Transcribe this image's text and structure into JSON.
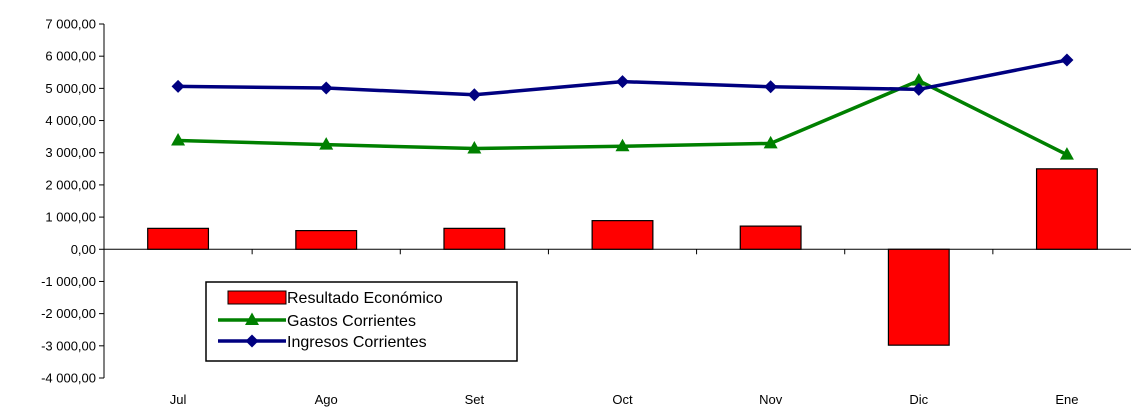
{
  "chart_data": {
    "type": "bar",
    "categories": [
      "Jul",
      "Ago",
      "Set",
      "Oct",
      "Nov",
      "Dic",
      "Ene"
    ],
    "ylim": [
      -4000,
      7000
    ],
    "yticks": [
      7000,
      6000,
      5000,
      4000,
      3000,
      2000,
      1000,
      0,
      -1000,
      -2000,
      -3000,
      -4000
    ],
    "ytick_labels": [
      "7 000,00",
      "6 000,00",
      "5 000,00",
      "4 000,00",
      "3 000,00",
      "2 000,00",
      "1 000,00",
      "0,00",
      "-1 000,00",
      "-2 000,00",
      "-3 000,00",
      "-4 000,00"
    ],
    "grid": false,
    "legend_position": "lower-left",
    "series": [
      {
        "name": "Resultado Económico",
        "kind": "bar",
        "color": "#ff0000",
        "values": [
          650,
          580,
          650,
          890,
          720,
          -2980,
          2500
        ]
      },
      {
        "name": "Gastos Corrientes",
        "kind": "line",
        "marker": "triangle",
        "color": "#008000",
        "values": [
          3380,
          3250,
          3130,
          3200,
          3290,
          5240,
          2940
        ]
      },
      {
        "name": "Ingresos Corrientes",
        "kind": "line",
        "marker": "diamond",
        "color": "#000080",
        "values": [
          5060,
          5010,
          4800,
          5210,
          5050,
          4970,
          5880
        ]
      }
    ]
  }
}
